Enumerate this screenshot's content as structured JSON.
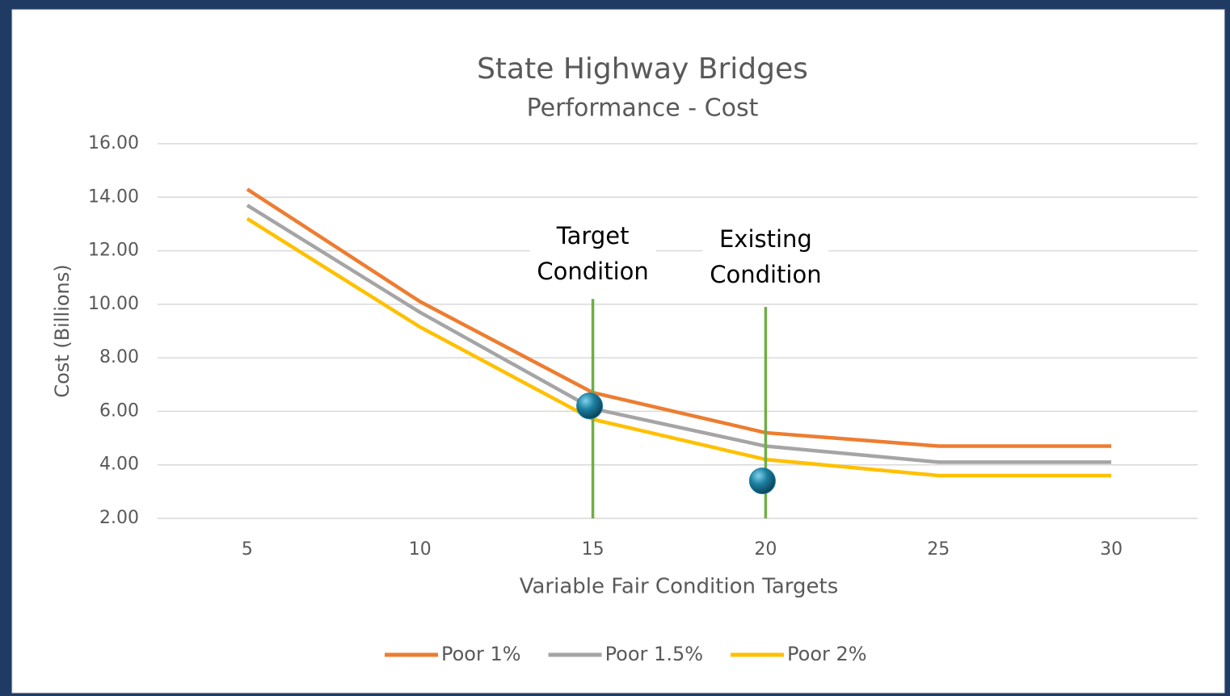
{
  "chart_data": {
    "type": "line",
    "title": "State Highway Bridges",
    "subtitle": "Performance - Cost",
    "x_label": "Variable Fair Condition Targets",
    "y_label": "Cost (Billions)",
    "categories": [
      5,
      10,
      15,
      20,
      25,
      30
    ],
    "series": [
      {
        "name": "Poor 1%",
        "color": "#ed7d31",
        "values": [
          14.3,
          10.1,
          6.7,
          5.2,
          4.7,
          4.7
        ]
      },
      {
        "name": "Poor 1.5%",
        "color": "#a5a5a5",
        "values": [
          13.7,
          9.7,
          6.1,
          4.7,
          4.1,
          4.1
        ]
      },
      {
        "name": "Poor 2%",
        "color": "#ffc000",
        "values": [
          13.2,
          9.15,
          5.7,
          4.2,
          3.6,
          3.6
        ]
      }
    ],
    "ylim": [
      2,
      16
    ],
    "yticks": [
      {
        "value": 2,
        "label": "2.00"
      },
      {
        "value": 4,
        "label": "4.00"
      },
      {
        "value": 6,
        "label": "6.00"
      },
      {
        "value": 8,
        "label": "8.00"
      },
      {
        "value": 10,
        "label": "10.00"
      },
      {
        "value": 12,
        "label": "12.00"
      },
      {
        "value": 14,
        "label": "14.00"
      },
      {
        "value": 16,
        "label": "16.00"
      }
    ],
    "grid": true,
    "legend": "bottom",
    "annotations": [
      {
        "lines": [
          "Target",
          "Condition"
        ],
        "x": 15,
        "top": 10.2,
        "color": "#70ad47"
      },
      {
        "lines": [
          "Existing",
          "Condition"
        ],
        "x": 20,
        "top": 9.9,
        "color": "#70ad47"
      }
    ],
    "markers": [
      {
        "x": 15,
        "y": 6.2,
        "color": "#1b7fa0"
      },
      {
        "x": 20,
        "y": 3.4,
        "color": "#1b7fa0"
      }
    ]
  }
}
